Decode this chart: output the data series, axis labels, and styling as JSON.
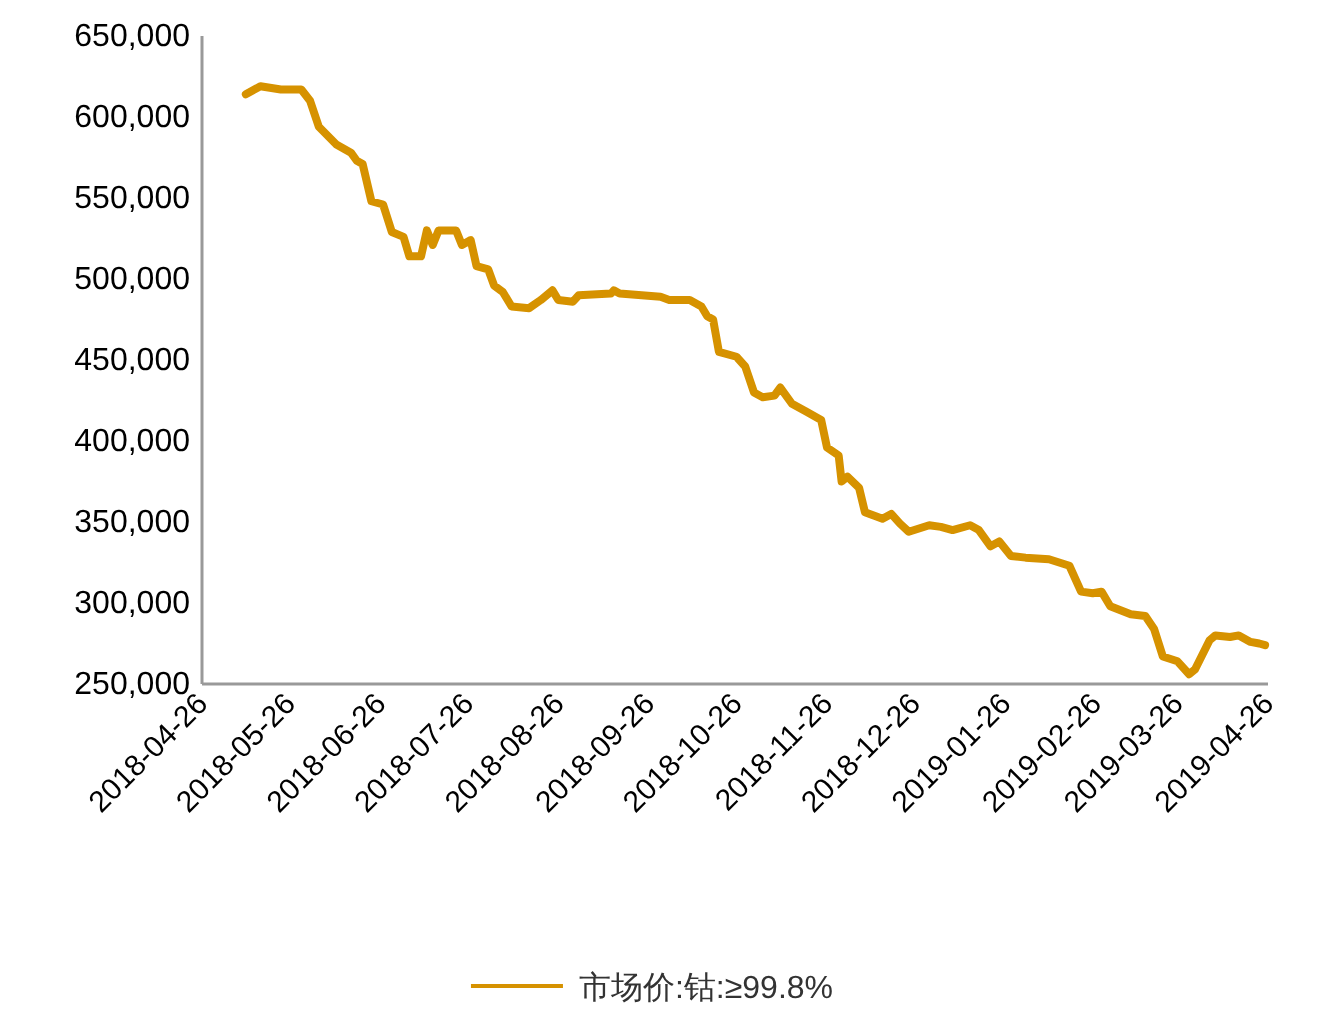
{
  "chart_data": {
    "type": "line",
    "grid": false,
    "legend": "bottom",
    "marker": "none",
    "line_style": "solid",
    "xlim": [
      "2018-04-26",
      "2019-04-26"
    ],
    "xticks": [
      "2018-04-26",
      "2018-05-26",
      "2018-06-26",
      "2018-07-26",
      "2018-08-26",
      "2018-09-26",
      "2018-10-26",
      "2018-11-26",
      "2018-12-26",
      "2019-01-26",
      "2019-02-26",
      "2019-03-26",
      "2019-04-26"
    ],
    "ylim": [
      250000,
      650000
    ],
    "yticks": [
      {
        "value": 250000,
        "label": "250,000"
      },
      {
        "value": 300000,
        "label": "300,000"
      },
      {
        "value": 350000,
        "label": "350,000"
      },
      {
        "value": 400000,
        "label": "400,000"
      },
      {
        "value": 450000,
        "label": "450,000"
      },
      {
        "value": 500000,
        "label": "500,000"
      },
      {
        "value": 550000,
        "label": "550,000"
      },
      {
        "value": 600000,
        "label": "600,000"
      },
      {
        "value": 650000,
        "label": "650,000"
      }
    ],
    "x": [
      "2018-05-11",
      "2018-05-16",
      "2018-05-23",
      "2018-05-30",
      "2018-06-02",
      "2018-06-05",
      "2018-06-11",
      "2018-06-16",
      "2018-06-18",
      "2018-06-20",
      "2018-06-23",
      "2018-06-27",
      "2018-06-30",
      "2018-07-04",
      "2018-07-06",
      "2018-07-10",
      "2018-07-12",
      "2018-07-14",
      "2018-07-16",
      "2018-07-22",
      "2018-07-24",
      "2018-07-27",
      "2018-07-29",
      "2018-08-02",
      "2018-08-04",
      "2018-08-07",
      "2018-08-10",
      "2018-08-16",
      "2018-08-20",
      "2018-08-24",
      "2018-08-26",
      "2018-08-31",
      "2018-09-02",
      "2018-09-13",
      "2018-09-14",
      "2018-09-16",
      "2018-09-30",
      "2018-10-03",
      "2018-10-10",
      "2018-10-14",
      "2018-10-16",
      "2018-10-18",
      "2018-10-20",
      "2018-10-26",
      "2018-10-29",
      "2018-11-01",
      "2018-11-04",
      "2018-11-08",
      "2018-11-10",
      "2018-11-14",
      "2018-11-19",
      "2018-11-24",
      "2018-11-26",
      "2018-11-30",
      "2018-12-01",
      "2018-12-03",
      "2018-12-07",
      "2018-12-09",
      "2018-12-12",
      "2018-12-15",
      "2018-12-18",
      "2018-12-21",
      "2018-12-24",
      "2018-12-31",
      "2019-01-04",
      "2019-01-08",
      "2019-01-14",
      "2019-01-17",
      "2019-01-21",
      "2019-01-24",
      "2019-01-28",
      "2019-02-02",
      "2019-02-10",
      "2019-02-17",
      "2019-02-21",
      "2019-02-25",
      "2019-02-28",
      "2019-03-03",
      "2019-03-10",
      "2019-03-15",
      "2019-03-18",
      "2019-03-21",
      "2019-03-26",
      "2019-03-30",
      "2019-04-01",
      "2019-04-06",
      "2019-04-08",
      "2019-04-13",
      "2019-04-16",
      "2019-04-20",
      "2019-04-23",
      "2019-04-25"
    ],
    "series": [
      {
        "name": "市场价:钴:≥99.8%",
        "color": "#d69200",
        "values": [
          614000,
          619000,
          617000,
          617000,
          610000,
          594000,
          583000,
          578000,
          573000,
          571000,
          548000,
          546000,
          529000,
          526000,
          514000,
          514000,
          530000,
          521000,
          530000,
          530000,
          521000,
          524000,
          508000,
          506000,
          496000,
          492000,
          483000,
          482000,
          487000,
          493000,
          487000,
          486000,
          490000,
          491000,
          493000,
          491000,
          489000,
          487000,
          487000,
          483000,
          477000,
          475000,
          455000,
          452000,
          446000,
          430000,
          427000,
          428000,
          433000,
          423000,
          418000,
          413000,
          396000,
          391000,
          375000,
          378000,
          371000,
          356000,
          354000,
          352000,
          355000,
          349000,
          344000,
          348000,
          347000,
          345000,
          348000,
          345000,
          335000,
          338000,
          329000,
          328000,
          327000,
          323000,
          307000,
          306000,
          307000,
          298000,
          293000,
          292000,
          284000,
          267000,
          264000,
          256000,
          259000,
          277000,
          280000,
          279000,
          280000,
          276000,
          275000,
          274000
        ]
      }
    ]
  }
}
